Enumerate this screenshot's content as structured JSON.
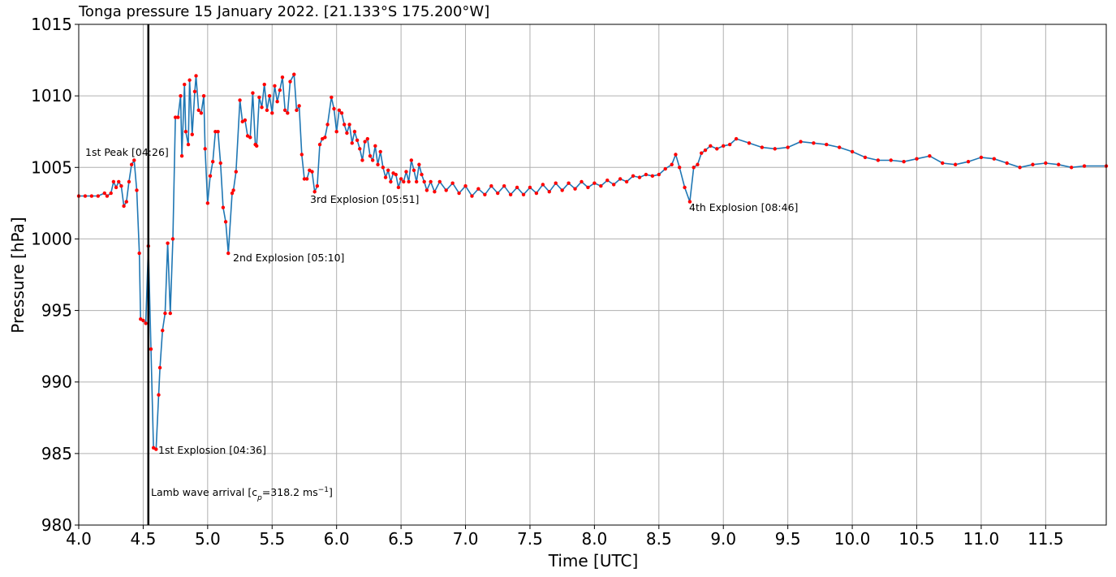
{
  "chart_data": {
    "type": "line",
    "title": "Tonga pressure 15 January 2022. [21.133°S 175.200°W]",
    "xlabel": "Time [UTC]",
    "ylabel": "Pressure [hPa]",
    "line_color": "#1f77b4",
    "marker_color": "#ff0000",
    "grid": true,
    "xlim": [
      4.0,
      11.97
    ],
    "ylim": [
      980,
      1015
    ],
    "xticks": [
      {
        "value": 4,
        "label": "4.0"
      },
      4.5,
      {
        "value": 5,
        "label": "5.0"
      },
      5.5,
      {
        "value": 6,
        "label": "6.0"
      },
      6.5,
      {
        "value": 7,
        "label": "7.0"
      },
      7.5,
      {
        "value": 8,
        "label": "8.0"
      },
      8.5,
      {
        "value": 9,
        "label": "9.0"
      },
      9.5,
      {
        "value": 10,
        "label": "10.0"
      },
      10.5,
      {
        "value": 11,
        "label": "11.0"
      },
      11.5
    ],
    "yticks": [
      980,
      985,
      990,
      995,
      1000,
      1005,
      1010,
      1015
    ],
    "x": [
      4.0,
      4.05,
      4.1,
      4.15,
      4.2,
      4.22,
      4.25,
      4.27,
      4.29,
      4.31,
      4.33,
      4.35,
      4.37,
      4.39,
      4.41,
      4.43,
      4.45,
      4.47,
      4.48,
      4.5,
      4.52,
      4.54,
      4.56,
      4.58,
      4.6,
      4.62,
      4.63,
      4.65,
      4.67,
      4.69,
      4.71,
      4.73,
      4.75,
      4.77,
      4.79,
      4.8,
      4.82,
      4.83,
      4.85,
      4.86,
      4.88,
      4.9,
      4.91,
      4.93,
      4.95,
      4.97,
      4.98,
      5.0,
      5.02,
      5.04,
      5.06,
      5.08,
      5.1,
      5.12,
      5.14,
      5.16,
      5.19,
      5.2,
      5.22,
      5.25,
      5.27,
      5.29,
      5.31,
      5.33,
      5.35,
      5.37,
      5.38,
      5.4,
      5.42,
      5.44,
      5.46,
      5.48,
      5.5,
      5.52,
      5.54,
      5.56,
      5.58,
      5.6,
      5.62,
      5.64,
      5.67,
      5.69,
      5.71,
      5.73,
      5.75,
      5.77,
      5.79,
      5.81,
      5.83,
      5.85,
      5.87,
      5.89,
      5.91,
      5.93,
      5.96,
      5.98,
      6.0,
      6.02,
      6.04,
      6.06,
      6.08,
      6.1,
      6.12,
      6.14,
      6.16,
      6.18,
      6.2,
      6.22,
      6.24,
      6.26,
      6.28,
      6.3,
      6.32,
      6.34,
      6.36,
      6.38,
      6.4,
      6.42,
      6.44,
      6.46,
      6.48,
      6.5,
      6.52,
      6.54,
      6.56,
      6.58,
      6.6,
      6.62,
      6.64,
      6.66,
      6.68,
      6.7,
      6.73,
      6.76,
      6.8,
      6.85,
      6.9,
      6.95,
      7.0,
      7.05,
      7.1,
      7.15,
      7.2,
      7.25,
      7.3,
      7.35,
      7.4,
      7.45,
      7.5,
      7.55,
      7.6,
      7.65,
      7.7,
      7.75,
      7.8,
      7.85,
      7.9,
      7.95,
      8.0,
      8.05,
      8.1,
      8.15,
      8.2,
      8.25,
      8.3,
      8.35,
      8.4,
      8.45,
      8.5,
      8.55,
      8.6,
      8.63,
      8.66,
      8.7,
      8.74,
      8.77,
      8.8,
      8.83,
      8.86,
      8.9,
      8.95,
      9.0,
      9.05,
      9.1,
      9.2,
      9.3,
      9.4,
      9.5,
      9.6,
      9.7,
      9.8,
      9.9,
      10.0,
      10.1,
      10.2,
      10.3,
      10.4,
      10.5,
      10.6,
      10.7,
      10.8,
      10.9,
      11.0,
      11.1,
      11.2,
      11.3,
      11.4,
      11.5,
      11.6,
      11.7,
      11.8,
      11.97
    ],
    "values": [
      1003.0,
      1003.0,
      1003.0,
      1003.0,
      1003.2,
      1003.0,
      1003.2,
      1004.0,
      1003.6,
      1004.0,
      1003.7,
      1002.3,
      1002.6,
      1004.0,
      1005.2,
      1005.5,
      1003.4,
      999.0,
      994.4,
      994.3,
      994.1,
      999.5,
      992.3,
      985.4,
      985.3,
      989.1,
      991.0,
      993.6,
      994.8,
      999.7,
      994.8,
      1000.0,
      1008.5,
      1008.5,
      1010.0,
      1005.8,
      1010.8,
      1007.5,
      1006.6,
      1011.1,
      1007.3,
      1010.3,
      1011.4,
      1009.0,
      1008.8,
      1010.0,
      1006.3,
      1002.5,
      1004.4,
      1005.4,
      1007.5,
      1007.5,
      1005.3,
      1002.2,
      1001.2,
      999.0,
      1003.2,
      1003.4,
      1004.7,
      1009.7,
      1008.2,
      1008.3,
      1007.2,
      1007.1,
      1010.2,
      1006.6,
      1006.5,
      1009.9,
      1009.2,
      1010.8,
      1009.0,
      1010.0,
      1008.8,
      1010.7,
      1009.6,
      1010.4,
      1011.3,
      1009.0,
      1008.8,
      1011.0,
      1011.5,
      1009.0,
      1009.3,
      1005.9,
      1004.2,
      1004.2,
      1004.8,
      1004.7,
      1003.3,
      1003.7,
      1006.6,
      1007.0,
      1007.1,
      1008.0,
      1009.9,
      1009.1,
      1007.5,
      1009.0,
      1008.8,
      1008.0,
      1007.4,
      1008.0,
      1006.7,
      1007.5,
      1006.9,
      1006.3,
      1005.5,
      1006.8,
      1007.0,
      1005.8,
      1005.5,
      1006.5,
      1005.2,
      1006.1,
      1005.0,
      1004.3,
      1004.8,
      1004.0,
      1004.6,
      1004.5,
      1003.6,
      1004.2,
      1004.0,
      1004.7,
      1004.0,
      1005.5,
      1004.8,
      1004.0,
      1005.2,
      1004.5,
      1004.0,
      1003.4,
      1004.0,
      1003.3,
      1004.0,
      1003.4,
      1003.9,
      1003.2,
      1003.7,
      1003.0,
      1003.5,
      1003.1,
      1003.7,
      1003.2,
      1003.7,
      1003.1,
      1003.6,
      1003.1,
      1003.6,
      1003.2,
      1003.8,
      1003.3,
      1003.9,
      1003.4,
      1003.9,
      1003.5,
      1004.0,
      1003.6,
      1003.9,
      1003.7,
      1004.1,
      1003.8,
      1004.2,
      1004.0,
      1004.4,
      1004.3,
      1004.5,
      1004.4,
      1004.5,
      1004.9,
      1005.2,
      1005.9,
      1005.0,
      1003.6,
      1002.6,
      1005.0,
      1005.2,
      1006.0,
      1006.2,
      1006.5,
      1006.3,
      1006.5,
      1006.6,
      1007.0,
      1006.7,
      1006.4,
      1006.3,
      1006.4,
      1006.8,
      1006.7,
      1006.6,
      1006.4,
      1006.1,
      1005.7,
      1005.5,
      1005.5,
      1005.4,
      1005.6,
      1005.8,
      1005.3,
      1005.2,
      1005.4,
      1005.7,
      1005.6,
      1005.3,
      1005.0,
      1005.2,
      1005.3,
      1005.2,
      1005.0,
      1005.1,
      1005.1
    ],
    "annotations": [
      "1st Peak [04:26]",
      "1st Explosion [04:36]",
      "2nd Explosion [05:10]",
      "3rd Explosion [05:51]",
      "4th Explosion [08:46]"
    ],
    "reference_line": {
      "x": 4.54,
      "label_parts": [
        "Lamb wave arrival [c",
        "p",
        "=318.2 ms",
        "−1",
        "]"
      ]
    }
  }
}
